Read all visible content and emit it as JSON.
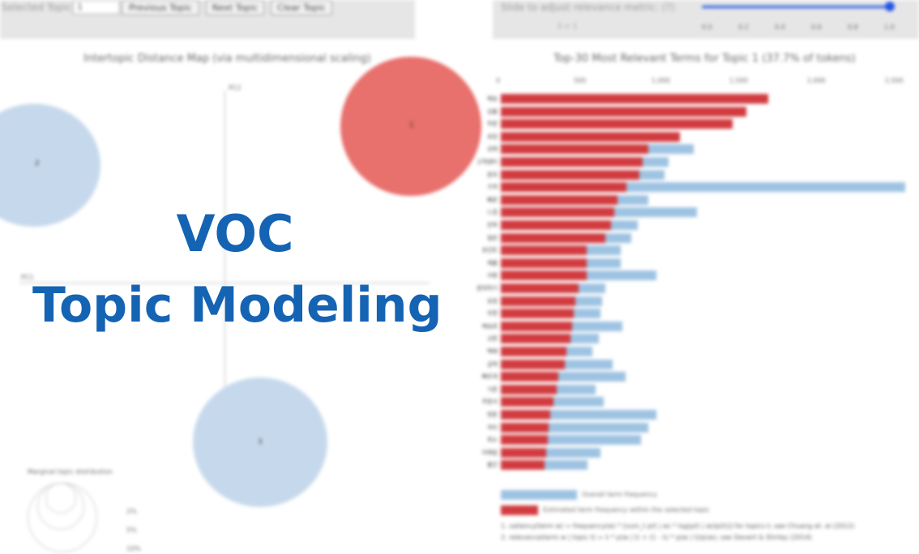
{
  "controls": {
    "selected_topic_label": "Selected Topic:",
    "selected_topic_value": "1",
    "prev_label": "Previous Topic",
    "next_label": "Next Topic",
    "clear_label": "Clear Topic",
    "slider_label": "Slide to adjust relevance metric: (?)",
    "lambda_text": "λ = 1",
    "lambda_value": 1,
    "slider_ticks": [
      "0.0",
      "0.2",
      "0.4",
      "0.6",
      "0.8",
      "1.0"
    ]
  },
  "left_panel": {
    "title": "Intertopic Distance Map (via multidimensional scaling)",
    "pc1_label": "PC1",
    "pc2_label": "PC2",
    "topics": [
      {
        "label": "1",
        "color": "#e8706d"
      },
      {
        "label": "2",
        "color": "#c6d9ec"
      },
      {
        "label": "3",
        "color": "#c6d9ec"
      }
    ],
    "marginal": {
      "title": "Marginal topic distribution",
      "labels": [
        "2%",
        "5%",
        "10%"
      ]
    }
  },
  "chart_data": {
    "type": "bar",
    "title": "Top-30 Most Relevant Terms for Topic 1 (37.7% of tokens)",
    "xlim": [
      0,
      2600
    ],
    "x_ticks": [
      "0",
      "500",
      "1,000",
      "1,500",
      "2,000",
      "2,500"
    ],
    "categories": [
      "배송",
      "상품",
      "주문",
      "포장",
      "상태",
      "고객센터",
      "문의",
      "가격",
      "빠른",
      "느낌",
      "만족",
      "일반",
      "포인트",
      "제품",
      "사용",
      "문의하기",
      "요청",
      "우편",
      "배송료",
      "교환",
      "택배",
      "금액",
      "빠르게",
      "기존",
      "주문서",
      "방문",
      "처리",
      "취소",
      "이메일",
      "물건"
    ],
    "series": [
      {
        "name": "Overall term frequency",
        "color": "#9ec3e2",
        "values": [
          1720,
          1580,
          1490,
          1150,
          1240,
          1080,
          1050,
          2600,
          950,
          1260,
          880,
          840,
          770,
          770,
          1000,
          670,
          650,
          640,
          780,
          630,
          590,
          720,
          800,
          610,
          660,
          1000,
          950,
          900,
          640,
          560
        ]
      },
      {
        "name": "Estimated term frequency within the selected topic",
        "color": "#d13b3f",
        "values": [
          1720,
          1580,
          1490,
          1150,
          950,
          910,
          890,
          810,
          750,
          730,
          710,
          670,
          550,
          550,
          550,
          500,
          480,
          470,
          460,
          450,
          420,
          410,
          370,
          360,
          340,
          320,
          310,
          300,
          290,
          280
        ]
      }
    ],
    "footnotes": [
      "1. saliency(term w) = frequency(w) * [sum_t p(t | w) * log(p(t | w)/p(t))] for topics t; see Chuang et. al (2012)",
      "2. relevance(term w | topic t) = λ * p(w | t) + (1 - λ) * p(w | t)/p(w); see Sievert & Shirley (2014)"
    ]
  },
  "overlay": {
    "line1": "VOC",
    "line2": "Topic Modeling",
    "color": "#1563b3"
  }
}
